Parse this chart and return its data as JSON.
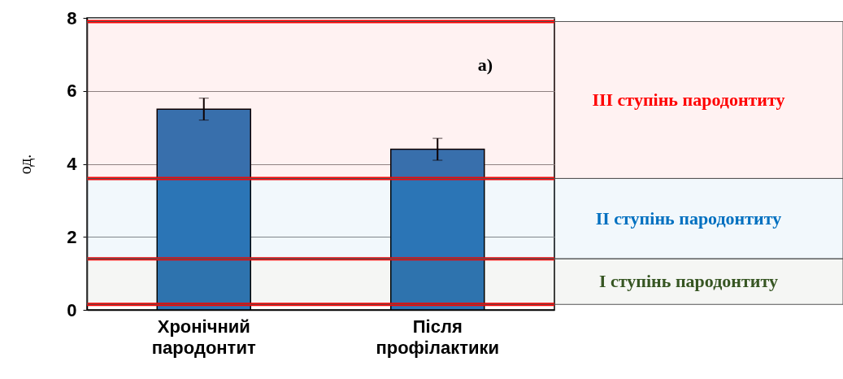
{
  "chart_data": {
    "type": "bar",
    "ylabel": "од.",
    "categories": [
      "Хронічний пародонтит",
      "Після профілактики"
    ],
    "values": [
      5.5,
      4.4
    ],
    "errors": [
      0.3,
      0.3
    ],
    "color": "#2e75b6",
    "ylim": [
      0,
      8
    ],
    "yticks": [
      0,
      2,
      4,
      6,
      8
    ],
    "grid": "y",
    "ref_lines": [
      {
        "axis": "y",
        "value": 0.15,
        "color": "#ff0000"
      },
      {
        "axis": "y",
        "value": 1.4,
        "color": "#ff0000"
      },
      {
        "axis": "y",
        "value": 3.6,
        "color": "#ff0000"
      },
      {
        "axis": "y",
        "value": 7.9,
        "color": "#ff0000"
      }
    ],
    "bands": [
      {
        "axis": "y",
        "from": 3.6,
        "to": 7.9,
        "label": "III ступінь пародонтиту",
        "color": "#ff0000"
      },
      {
        "axis": "y",
        "from": 1.4,
        "to": 3.6,
        "label": "II ступінь пародонтиту",
        "color": "#0070c0"
      },
      {
        "axis": "y",
        "from": 0.15,
        "to": 1.4,
        "label": "I ступінь пародонтиту",
        "color": "#375623"
      }
    ],
    "annotations": [
      "а)"
    ]
  }
}
